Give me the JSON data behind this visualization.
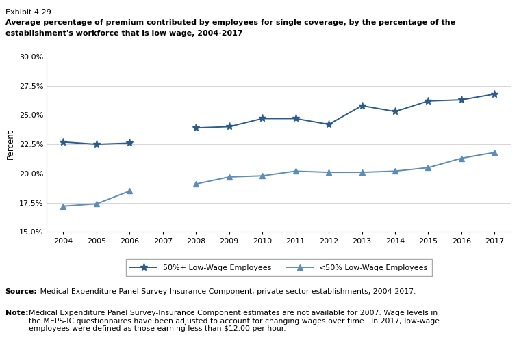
{
  "exhibit_label": "Exhibit 4.29",
  "title_line1": "Average percentage of premium contributed by employees for single coverage, by the percentage of the",
  "title_line2": "establishment's workforce that is low wage, 2004-2017",
  "ylabel": "Percent",
  "years": [
    2004,
    2005,
    2006,
    2007,
    2008,
    2009,
    2010,
    2011,
    2012,
    2013,
    2014,
    2015,
    2016,
    2017
  ],
  "series1_label": "50%+ Low-Wage Employees",
  "series1_values": [
    22.7,
    22.5,
    22.6,
    null,
    23.9,
    24.0,
    24.7,
    24.7,
    24.2,
    25.8,
    25.3,
    26.2,
    26.3,
    26.8
  ],
  "series2_label": "<50% Low-Wage Employees",
  "series2_values": [
    17.2,
    17.4,
    18.5,
    null,
    19.1,
    19.7,
    19.8,
    20.2,
    20.1,
    20.1,
    20.2,
    20.5,
    21.3,
    21.8
  ],
  "ylim": [
    15.0,
    30.0
  ],
  "yticks": [
    15.0,
    17.5,
    20.0,
    22.5,
    25.0,
    27.5,
    30.0
  ],
  "source_bold": "Source:",
  "source_text": " Medical Expenditure Panel Survey-Insurance Component, private-sector establishments, 2004-2017.",
  "note_bold": "Note:",
  "note_text": " Medical Expenditure Panel Survey-Insurance Component estimates are not available for 2007. Wage levels in the MEPS-IC questionnaires have been adjusted to account for changing wages over time.  In 2017, low-wage employees were defined as those earning less than $12.00 per hour.",
  "color1": "#2A5B8C",
  "color2": "#5B8DB8",
  "background_color": "#ffffff"
}
